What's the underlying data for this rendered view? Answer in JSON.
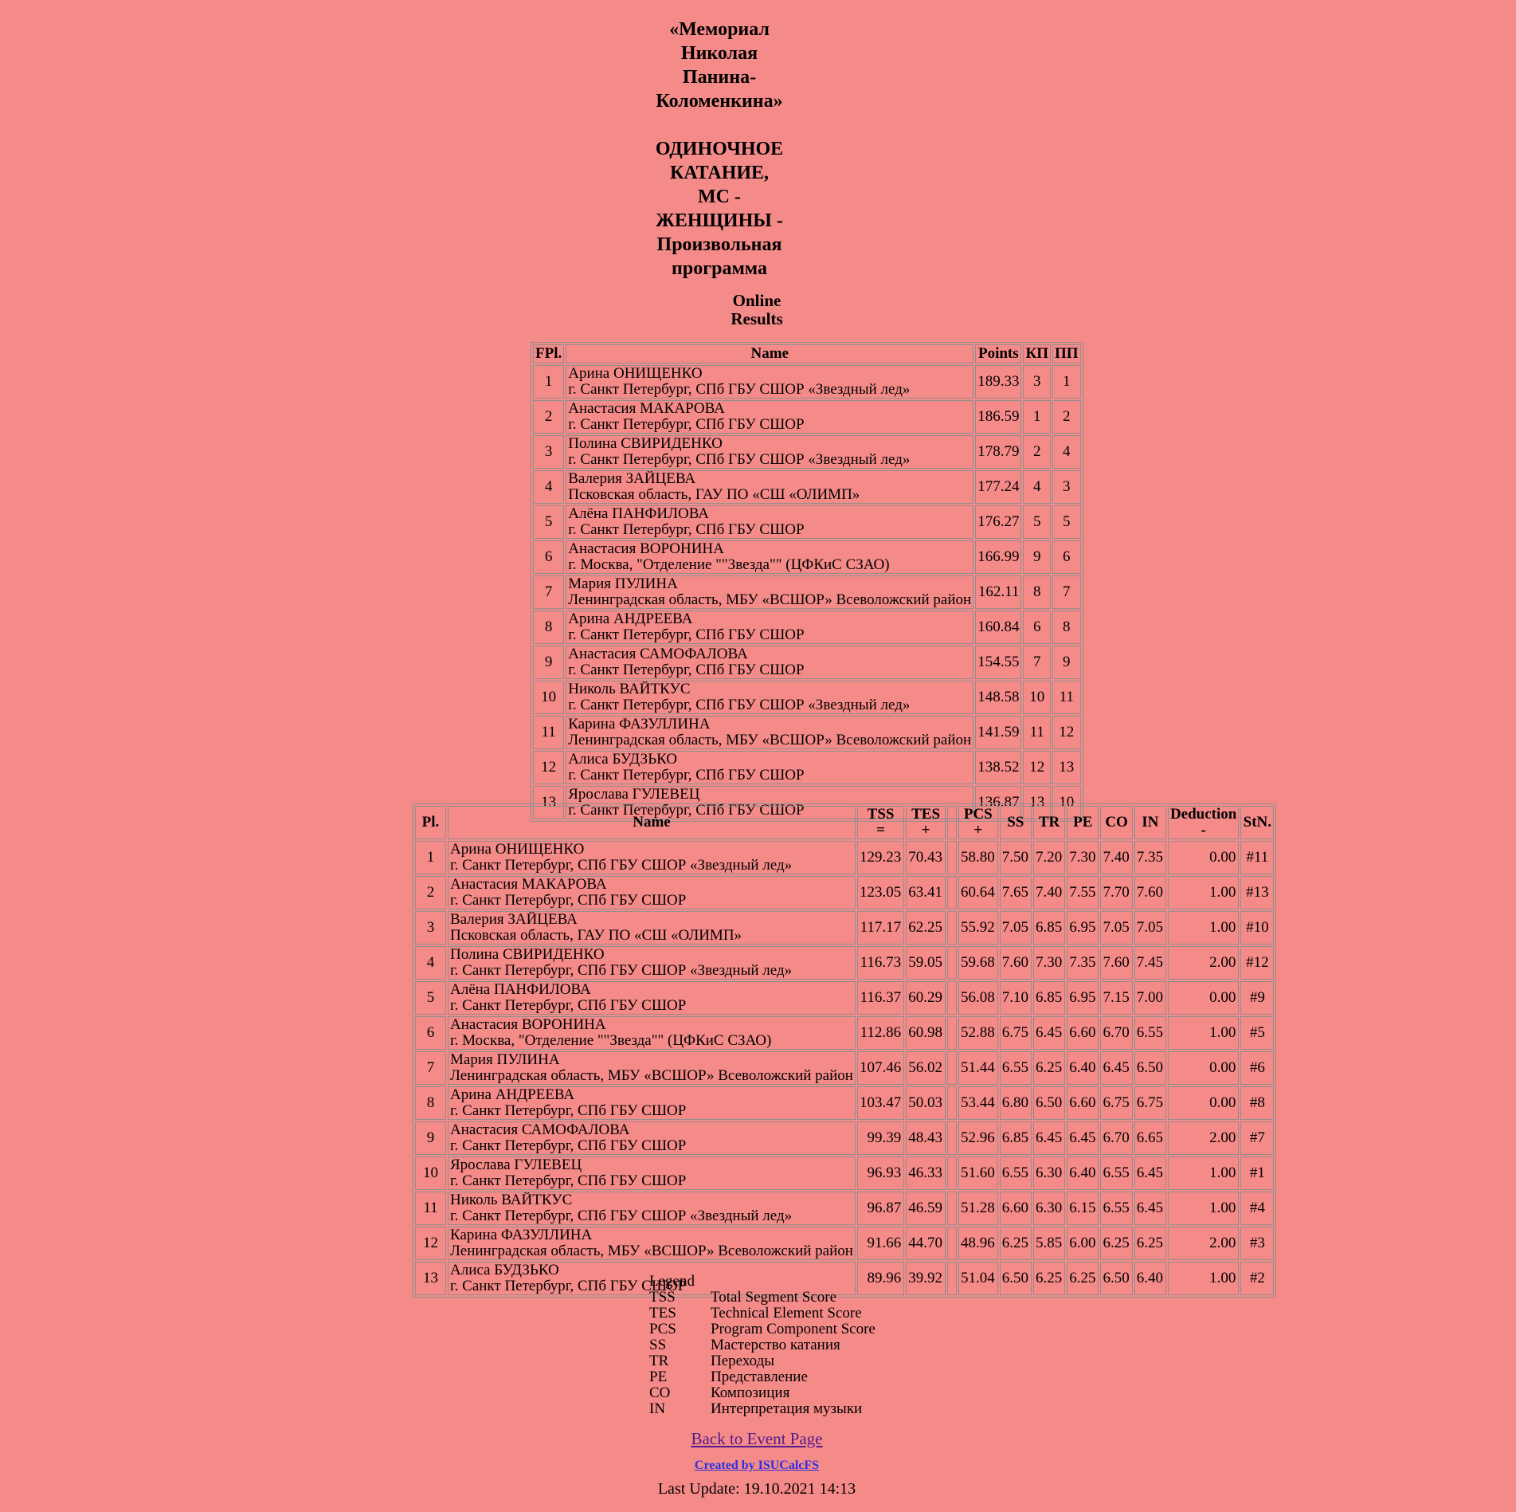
{
  "colors": {
    "background": "#F58B89",
    "table_border": "#8f8f8f",
    "text": "#000000",
    "back_link": "#551A8B",
    "created_link": "#2E2EE0"
  },
  "header": {
    "event_title_lines": [
      "«Мемориал",
      "Николая",
      "Панина-",
      "Коломенкина»"
    ],
    "category_title_lines": [
      "ОДИНОЧНОЕ",
      "КАТАНИЕ,",
      "МС -",
      "ЖЕНЩИНЫ -",
      "Произвольная",
      "программа"
    ],
    "subtitle_lines": [
      "Online",
      "Results"
    ]
  },
  "results_table": {
    "headers": {
      "fpl": "FPl.",
      "name": "Name",
      "points": "Points",
      "kp": "КП",
      "pp": "ПП"
    },
    "rows": [
      {
        "fpl": "1",
        "name": "Арина ОНИЩЕНКО",
        "club": "г. Санкт Петербург, СПб ГБУ СШОР «Звездный лед»",
        "points": "189.33",
        "kp": "3",
        "pp": "1"
      },
      {
        "fpl": "2",
        "name": "Анастасия МАКАРОВА",
        "club": "г. Санкт Петербург, СПб ГБУ СШОР",
        "points": "186.59",
        "kp": "1",
        "pp": "2"
      },
      {
        "fpl": "3",
        "name": "Полина СВИРИДЕНКО",
        "club": "г. Санкт Петербург, СПб ГБУ СШОР «Звездный лед»",
        "points": "178.79",
        "kp": "2",
        "pp": "4"
      },
      {
        "fpl": "4",
        "name": "Валерия ЗАЙЦЕВА",
        "club": "Псковская область, ГАУ ПО «СШ «ОЛИМП»",
        "points": "177.24",
        "kp": "4",
        "pp": "3"
      },
      {
        "fpl": "5",
        "name": "Алёна ПАНФИЛОВА",
        "club": "г. Санкт Петербург, СПб ГБУ СШОР",
        "points": "176.27",
        "kp": "5",
        "pp": "5"
      },
      {
        "fpl": "6",
        "name": "Анастасия ВОРОНИНА",
        "club": "г. Москва, \"Отделение \"\"Звезда\"\" (ЦФКиС СЗАО)",
        "points": "166.99",
        "kp": "9",
        "pp": "6"
      },
      {
        "fpl": "7",
        "name": "Мария ПУЛИНА",
        "club": "Ленинградская область, МБУ «ВСШОР» Всеволожский район",
        "points": "162.11",
        "kp": "8",
        "pp": "7"
      },
      {
        "fpl": "8",
        "name": "Арина АНДРЕЕВА",
        "club": "г. Санкт Петербург, СПб ГБУ СШОР",
        "points": "160.84",
        "kp": "6",
        "pp": "8"
      },
      {
        "fpl": "9",
        "name": "Анастасия САМОФАЛОВА",
        "club": "г. Санкт Петербург, СПб ГБУ СШОР",
        "points": "154.55",
        "kp": "7",
        "pp": "9"
      },
      {
        "fpl": "10",
        "name": "Николь ВАЙТКУС",
        "club": "г. Санкт Петербург, СПб ГБУ СШОР «Звездный лед»",
        "points": "148.58",
        "kp": "10",
        "pp": "11"
      },
      {
        "fpl": "11",
        "name": "Карина ФАЗУЛЛИНА",
        "club": "Ленинградская область, МБУ «ВСШОР» Всеволожский район",
        "points": "141.59",
        "kp": "11",
        "pp": "12"
      },
      {
        "fpl": "12",
        "name": "Алиса БУДЗЬКО",
        "club": "г. Санкт Петербург, СПб ГБУ СШОР",
        "points": "138.52",
        "kp": "12",
        "pp": "13"
      },
      {
        "fpl": "13",
        "name": "Ярослава ГУЛЕВЕЦ",
        "club": "г. Санкт Петербург, СПб ГБУ СШОР",
        "points": "136.87",
        "kp": "13",
        "pp": "10"
      }
    ]
  },
  "details_table": {
    "headers": {
      "pl": "Pl.",
      "name": "Name",
      "tss_line1": "TSS",
      "tss_line2": "=",
      "tes_line1": "TES",
      "tes_line2": "+",
      "pcs_line1": "PCS",
      "pcs_line2": "+",
      "ss": "SS",
      "tr": "TR",
      "pe": "PE",
      "co": "CO",
      "in": "IN",
      "deduction_line1": "Deduction",
      "deduction_line2": "-",
      "stn": "StN."
    },
    "rows": [
      {
        "pl": "1",
        "name": "Арина ОНИЩЕНКО",
        "club": "г. Санкт Петербург, СПб ГБУ СШОР «Звездный лед»",
        "tss": "129.23",
        "tes": "70.43",
        "pcs": "58.80",
        "ss": "7.50",
        "tr": "7.20",
        "pe": "7.30",
        "co": "7.40",
        "in": "7.35",
        "deduction": "0.00",
        "stn": "#11"
      },
      {
        "pl": "2",
        "name": "Анастасия МАКАРОВА",
        "club": "г. Санкт Петербург, СПб ГБУ СШОР",
        "tss": "123.05",
        "tes": "63.41",
        "pcs": "60.64",
        "ss": "7.65",
        "tr": "7.40",
        "pe": "7.55",
        "co": "7.70",
        "in": "7.60",
        "deduction": "1.00",
        "stn": "#13"
      },
      {
        "pl": "3",
        "name": "Валерия ЗАЙЦЕВА",
        "club": "Псковская область, ГАУ ПО «СШ «ОЛИМП»",
        "tss": "117.17",
        "tes": "62.25",
        "pcs": "55.92",
        "ss": "7.05",
        "tr": "6.85",
        "pe": "6.95",
        "co": "7.05",
        "in": "7.05",
        "deduction": "1.00",
        "stn": "#10"
      },
      {
        "pl": "4",
        "name": "Полина СВИРИДЕНКО",
        "club": "г. Санкт Петербург, СПб ГБУ СШОР «Звездный лед»",
        "tss": "116.73",
        "tes": "59.05",
        "pcs": "59.68",
        "ss": "7.60",
        "tr": "7.30",
        "pe": "7.35",
        "co": "7.60",
        "in": "7.45",
        "deduction": "2.00",
        "stn": "#12"
      },
      {
        "pl": "5",
        "name": "Алёна ПАНФИЛОВА",
        "club": "г. Санкт Петербург, СПб ГБУ СШОР",
        "tss": "116.37",
        "tes": "60.29",
        "pcs": "56.08",
        "ss": "7.10",
        "tr": "6.85",
        "pe": "6.95",
        "co": "7.15",
        "in": "7.00",
        "deduction": "0.00",
        "stn": "#9"
      },
      {
        "pl": "6",
        "name": "Анастасия ВОРОНИНА",
        "club": "г. Москва, \"Отделение \"\"Звезда\"\" (ЦФКиС СЗАО)",
        "tss": "112.86",
        "tes": "60.98",
        "pcs": "52.88",
        "ss": "6.75",
        "tr": "6.45",
        "pe": "6.60",
        "co": "6.70",
        "in": "6.55",
        "deduction": "1.00",
        "stn": "#5"
      },
      {
        "pl": "7",
        "name": "Мария ПУЛИНА",
        "club": "Ленинградская область, МБУ «ВСШОР» Всеволожский район",
        "tss": "107.46",
        "tes": "56.02",
        "pcs": "51.44",
        "ss": "6.55",
        "tr": "6.25",
        "pe": "6.40",
        "co": "6.45",
        "in": "6.50",
        "deduction": "0.00",
        "stn": "#6"
      },
      {
        "pl": "8",
        "name": "Арина АНДРЕЕВА",
        "club": "г. Санкт Петербург, СПб ГБУ СШОР",
        "tss": "103.47",
        "tes": "50.03",
        "pcs": "53.44",
        "ss": "6.80",
        "tr": "6.50",
        "pe": "6.60",
        "co": "6.75",
        "in": "6.75",
        "deduction": "0.00",
        "stn": "#8"
      },
      {
        "pl": "9",
        "name": "Анастасия САМОФАЛОВА",
        "club": "г. Санкт Петербург, СПб ГБУ СШОР",
        "tss": "99.39",
        "tes": "48.43",
        "pcs": "52.96",
        "ss": "6.85",
        "tr": "6.45",
        "pe": "6.45",
        "co": "6.70",
        "in": "6.65",
        "deduction": "2.00",
        "stn": "#7"
      },
      {
        "pl": "10",
        "name": "Ярослава ГУЛЕВЕЦ",
        "club": "г. Санкт Петербург, СПб ГБУ СШОР",
        "tss": "96.93",
        "tes": "46.33",
        "pcs": "51.60",
        "ss": "6.55",
        "tr": "6.30",
        "pe": "6.40",
        "co": "6.55",
        "in": "6.45",
        "deduction": "1.00",
        "stn": "#1"
      },
      {
        "pl": "11",
        "name": "Николь ВАЙТКУС",
        "club": "г. Санкт Петербург, СПб ГБУ СШОР «Звездный лед»",
        "tss": "96.87",
        "tes": "46.59",
        "pcs": "51.28",
        "ss": "6.60",
        "tr": "6.30",
        "pe": "6.15",
        "co": "6.55",
        "in": "6.45",
        "deduction": "1.00",
        "stn": "#4"
      },
      {
        "pl": "12",
        "name": "Карина ФАЗУЛЛИНА",
        "club": "Ленинградская область, МБУ «ВСШОР» Всеволожский район",
        "tss": "91.66",
        "tes": "44.70",
        "pcs": "48.96",
        "ss": "6.25",
        "tr": "5.85",
        "pe": "6.00",
        "co": "6.25",
        "in": "6.25",
        "deduction": "2.00",
        "stn": "#3"
      },
      {
        "pl": "13",
        "name": "Алиса БУДЗЬКО",
        "club": "г. Санкт Петербург, СПб ГБУ СШОР",
        "tss": "89.96",
        "tes": "39.92",
        "pcs": "51.04",
        "ss": "6.50",
        "tr": "6.25",
        "pe": "6.25",
        "co": "6.50",
        "in": "6.40",
        "deduction": "1.00",
        "stn": "#2"
      }
    ]
  },
  "legend": {
    "title": "Legend",
    "items": [
      {
        "abbr": "TSS",
        "desc": "Total Segment Score"
      },
      {
        "abbr": "TES",
        "desc": "Technical Element Score"
      },
      {
        "abbr": "PCS",
        "desc": "Program Component Score"
      },
      {
        "abbr": "SS",
        "desc": "Мастерство катания"
      },
      {
        "abbr": "TR",
        "desc": "Переходы"
      },
      {
        "abbr": "PE",
        "desc": "Представление"
      },
      {
        "abbr": "CO",
        "desc": "Композиция"
      },
      {
        "abbr": "IN",
        "desc": "Интерпретация музыки"
      }
    ]
  },
  "footer": {
    "back_link": "Back to Event Page",
    "created_by": "Created by ISUCalcFS",
    "last_update": "Last Update: 19.10.2021 14:13"
  }
}
